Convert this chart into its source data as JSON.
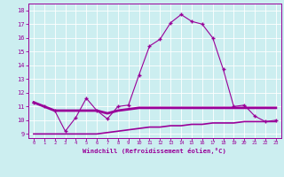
{
  "xlabel": "Windchill (Refroidissement éolien,°C)",
  "line1": {
    "x": [
      0,
      1,
      2,
      3,
      4,
      5,
      6,
      7,
      8,
      9,
      10,
      11,
      12,
      13,
      14,
      15,
      16,
      17,
      18,
      19,
      20,
      21,
      22,
      23
    ],
    "y": [
      11.3,
      11.0,
      10.7,
      9.2,
      10.2,
      11.6,
      10.7,
      10.1,
      11.0,
      11.1,
      13.3,
      15.4,
      15.9,
      17.1,
      17.7,
      17.2,
      17.0,
      16.0,
      13.7,
      11.0,
      11.1,
      10.3,
      9.9,
      10.0
    ],
    "color": "#990099",
    "marker": "+",
    "markersize": 3.5,
    "linewidth": 0.8
  },
  "line2": {
    "x": [
      0,
      1,
      2,
      3,
      4,
      5,
      6,
      7,
      8,
      9,
      10,
      11,
      12,
      13,
      14,
      15,
      16,
      17,
      18,
      19,
      20,
      21,
      22,
      23
    ],
    "y": [
      11.3,
      11.0,
      10.7,
      10.7,
      10.7,
      10.7,
      10.7,
      10.5,
      10.7,
      10.8,
      10.9,
      10.9,
      10.9,
      10.9,
      10.9,
      10.9,
      10.9,
      10.9,
      10.9,
      10.9,
      10.9,
      10.9,
      10.9,
      10.9
    ],
    "color": "#990099",
    "linewidth": 2.0
  },
  "line3": {
    "x": [
      0,
      1,
      2,
      3,
      4,
      5,
      6,
      7,
      8,
      9,
      10,
      11,
      12,
      13,
      14,
      15,
      16,
      17,
      18,
      19,
      20,
      21,
      22,
      23
    ],
    "y": [
      9.0,
      9.0,
      9.0,
      9.0,
      9.0,
      9.0,
      9.0,
      9.1,
      9.2,
      9.3,
      9.4,
      9.5,
      9.5,
      9.6,
      9.6,
      9.7,
      9.7,
      9.8,
      9.8,
      9.8,
      9.9,
      9.9,
      9.9,
      9.9
    ],
    "color": "#990099",
    "linewidth": 1.2
  },
  "ylim": [
    8.7,
    18.5
  ],
  "xlim": [
    -0.5,
    23.5
  ],
  "yticks": [
    9,
    10,
    11,
    12,
    13,
    14,
    15,
    16,
    17,
    18
  ],
  "xticks": [
    0,
    1,
    2,
    3,
    4,
    5,
    6,
    7,
    8,
    9,
    10,
    11,
    12,
    13,
    14,
    15,
    16,
    17,
    18,
    19,
    20,
    21,
    22,
    23
  ],
  "bg_color": "#cceef0",
  "grid_color": "#ffffff",
  "text_color": "#990099",
  "tick_color": "#990099",
  "spine_color": "#990099"
}
